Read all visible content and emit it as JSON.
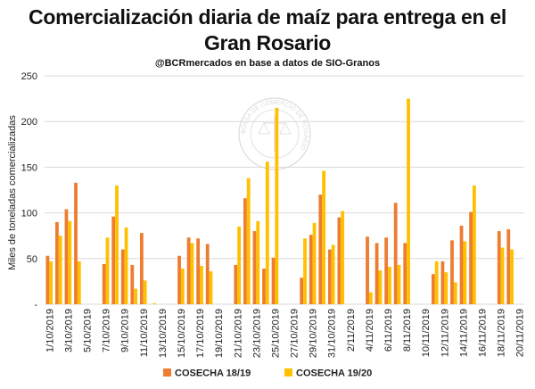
{
  "title_line1": "Comercialización diaria de maíz para entrega en el",
  "title_line2": "Gran Rosario",
  "subtitle": "@BCRmercados en base a datos de SIO-Granos",
  "watermark": "BOLSA DE COMERCIO DE ROSARIO",
  "colors": {
    "series1": "#ED7D31",
    "series2": "#FFC000",
    "grid": "#D9D9D9",
    "text": "#222222"
  },
  "chart_data": {
    "type": "bar",
    "ylabel": "Miles de toneladas comercializadas",
    "ylim": [
      0,
      250
    ],
    "yticks": [
      0,
      50,
      100,
      150,
      200,
      250
    ],
    "yticklabels": [
      "-",
      "50",
      "100",
      "150",
      "200",
      "250"
    ],
    "grid": true,
    "legend_position": "bottom",
    "categories": [
      "1/10/2019",
      "2/10/2019",
      "3/10/2019",
      "4/10/2019",
      "5/10/2019",
      "6/10/2019",
      "7/10/2019",
      "8/10/2019",
      "9/10/2019",
      "10/10/2019",
      "11/10/2019",
      "12/10/2019",
      "13/10/2019",
      "14/10/2019",
      "15/10/2019",
      "16/10/2019",
      "17/10/2019",
      "18/10/2019",
      "19/10/2019",
      "20/10/2019",
      "21/10/2019",
      "22/10/2019",
      "23/10/2019",
      "24/10/2019",
      "25/10/2019",
      "26/10/2019",
      "27/10/2019",
      "28/10/2019",
      "29/10/2019",
      "30/10/2019",
      "31/10/2019",
      "1/11/2019",
      "2/11/2019",
      "3/11/2019",
      "4/11/2019",
      "5/11/2019",
      "6/11/2019",
      "7/11/2019",
      "8/11/2019",
      "9/11/2019",
      "10/11/2019",
      "11/11/2019",
      "12/11/2019",
      "13/11/2019",
      "14/11/2019",
      "15/11/2019",
      "16/11/2019",
      "17/11/2019",
      "18/11/2019",
      "19/11/2019",
      "20/11/2019"
    ],
    "xticklabels": [
      "1/10/2019",
      "3/10/2019",
      "5/10/2019",
      "7/10/2019",
      "9/10/2019",
      "11/10/2019",
      "13/10/2019",
      "15/10/2019",
      "17/10/2019",
      "19/10/2019",
      "21/10/2019",
      "23/10/2019",
      "25/10/2019",
      "27/10/2019",
      "29/10/2019",
      "31/10/2019",
      "2/11/2019",
      "4/11/2019",
      "6/11/2019",
      "8/11/2019",
      "10/11/2019",
      "12/11/2019",
      "14/11/2019",
      "16/11/2019",
      "18/11/2019",
      "20/11/2019"
    ],
    "series": [
      {
        "name": "COSECHA 18/19",
        "values": [
          53,
          90,
          104,
          133,
          0,
          0,
          44,
          96,
          60,
          43,
          78,
          0,
          0,
          0,
          53,
          73,
          72,
          66,
          0,
          0,
          43,
          116,
          80,
          39,
          51,
          0,
          0,
          29,
          76,
          120,
          60,
          95,
          0,
          0,
          74,
          67,
          73,
          111,
          67,
          0,
          0,
          33,
          47,
          70,
          86,
          101,
          0,
          0,
          80,
          82,
          0
        ]
      },
      {
        "name": "COSECHA 19/20",
        "values": [
          47,
          75,
          91,
          47,
          0,
          0,
          73,
          130,
          84,
          17,
          26,
          1,
          0,
          0,
          39,
          67,
          42,
          36,
          0,
          0,
          85,
          138,
          91,
          156,
          215,
          0,
          0,
          72,
          89,
          146,
          65,
          102,
          0,
          0,
          13,
          37,
          41,
          43,
          225,
          0,
          0,
          47,
          35,
          24,
          69,
          130,
          0,
          0,
          62,
          60,
          0
        ]
      }
    ]
  }
}
